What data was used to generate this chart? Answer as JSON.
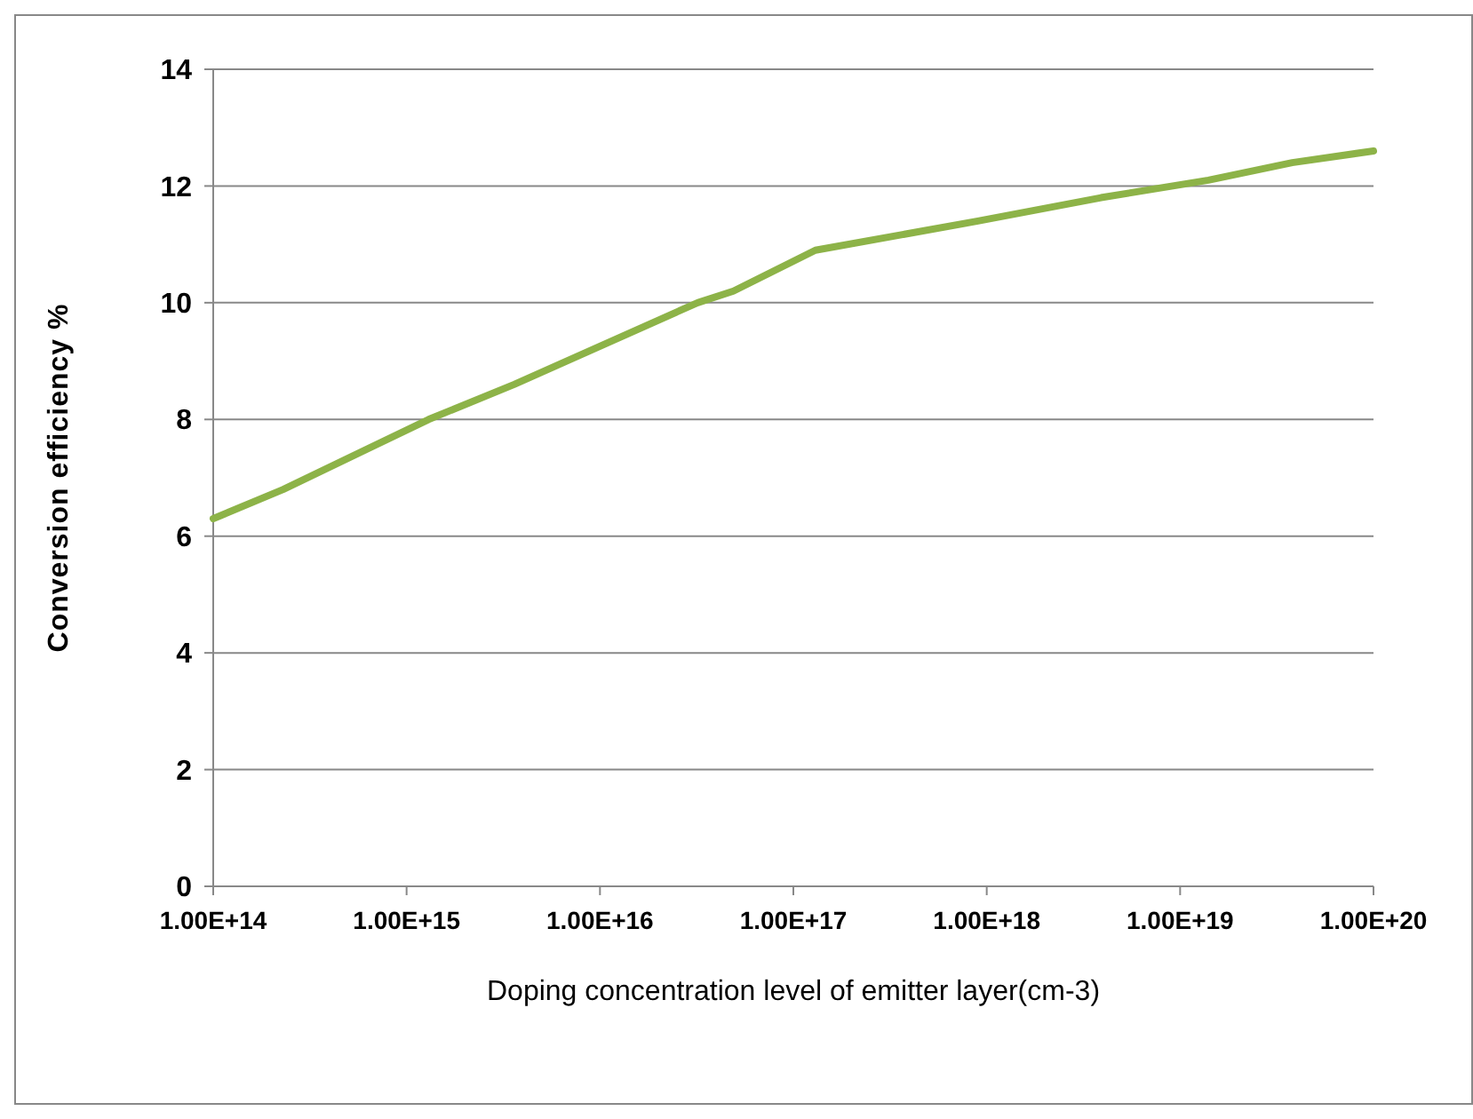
{
  "chart_data": {
    "type": "line",
    "xlabel": "Doping concentration level of emitter layer(cm-3)",
    "ylabel": "Conversion efficiency %",
    "log": "x",
    "x": [
      100000000000000.0,
      230000000000000.0,
      1300000000000000.0,
      3600000000000000.0,
      3.2e+16,
      4.9e+16,
      1.3e+17,
      9e+17,
      3.9e+18,
      1.4e+19,
      3.8e+19,
      1e+20
    ],
    "series": [
      {
        "color": "#8db348",
        "values": [
          6.3,
          6.8,
          8.0,
          8.6,
          10.0,
          10.2,
          10.9,
          11.4,
          11.8,
          12.1,
          12.4,
          12.6
        ]
      }
    ],
    "xlim": [
      100000000000000.0,
      1e+20
    ],
    "xticks": [
      {
        "value": 100000000000000.0,
        "label": "1.00E+14"
      },
      {
        "value": 1000000000000000.0,
        "label": "1.00E+15"
      },
      {
        "value": 1e+16,
        "label": "1.00E+16"
      },
      {
        "value": 1e+17,
        "label": "1.00E+17"
      },
      {
        "value": 1e+18,
        "label": "1.00E+18"
      },
      {
        "value": 1e+19,
        "label": "1.00E+19"
      },
      {
        "value": 1e+20,
        "label": "1.00E+20"
      }
    ],
    "ylim": [
      0,
      14
    ],
    "yticks": [
      0,
      2,
      4,
      6,
      8,
      10,
      12,
      14
    ],
    "grid": "y",
    "line_style": "solid"
  }
}
